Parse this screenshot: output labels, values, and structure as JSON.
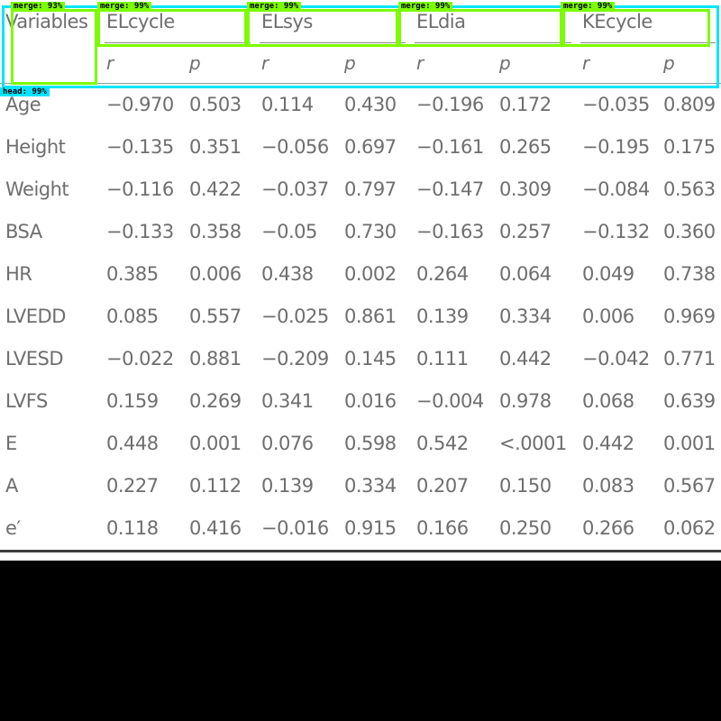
{
  "table": {
    "corner_label": "Variables",
    "groups": [
      "ELcycle",
      "ELsys",
      "ELdia",
      "KEcycle"
    ],
    "sub_headers": [
      "r",
      "p",
      "r",
      "p",
      "r",
      "p",
      "r",
      "p"
    ],
    "rows": [
      {
        "label": "Age",
        "cells": [
          "−0.970",
          "0.503",
          "0.114",
          "0.430",
          "−0.196",
          "0.172",
          "−0.035",
          "0.809"
        ]
      },
      {
        "label": "Height",
        "cells": [
          "−0.135",
          "0.351",
          "−0.056",
          "0.697",
          "−0.161",
          "0.265",
          "−0.195",
          "0.175"
        ]
      },
      {
        "label": "Weight",
        "cells": [
          "−0.116",
          "0.422",
          "−0.037",
          "0.797",
          "−0.147",
          "0.309",
          "−0.084",
          "0.563"
        ]
      },
      {
        "label": "BSA",
        "cells": [
          "−0.133",
          "0.358",
          "−0.05",
          "0.730",
          "−0.163",
          "0.257",
          "−0.132",
          "0.360"
        ]
      },
      {
        "label": "HR",
        "cells": [
          "0.385",
          "0.006",
          "0.438",
          "0.002",
          "0.264",
          "0.064",
          "0.049",
          "0.738"
        ]
      },
      {
        "label": "LVEDD",
        "cells": [
          "0.085",
          "0.557",
          "−0.025",
          "0.861",
          "0.139",
          "0.334",
          "0.006",
          "0.969"
        ]
      },
      {
        "label": "LVESD",
        "cells": [
          "−0.022",
          "0.881",
          "−0.209",
          "0.145",
          "0.111",
          "0.442",
          "−0.042",
          "0.771"
        ]
      },
      {
        "label": "LVFS",
        "cells": [
          "0.159",
          "0.269",
          "0.341",
          "0.016",
          "−0.004",
          "0.978",
          "0.068",
          "0.639"
        ]
      },
      {
        "label": "E",
        "cells": [
          "0.448",
          "0.001",
          "0.076",
          "0.598",
          "0.542",
          "<.0001",
          "0.442",
          "0.001"
        ]
      },
      {
        "label": "A",
        "cells": [
          "0.227",
          "0.112",
          "0.139",
          "0.334",
          "0.207",
          "0.150",
          "0.083",
          "0.567"
        ]
      },
      {
        "label": "e′",
        "cells": [
          "0.118",
          "0.416",
          "−0.016",
          "0.915",
          "0.166",
          "0.250",
          "0.266",
          "0.062"
        ]
      }
    ]
  },
  "overlays": {
    "merge_labels": [
      "merge: 93%",
      "merge: 99%",
      "merge: 99%",
      "merge: 99%",
      "merge: 99%"
    ],
    "head_label": "head: 99%",
    "green": "#7CFC00",
    "cyan": "#00E5FF"
  }
}
